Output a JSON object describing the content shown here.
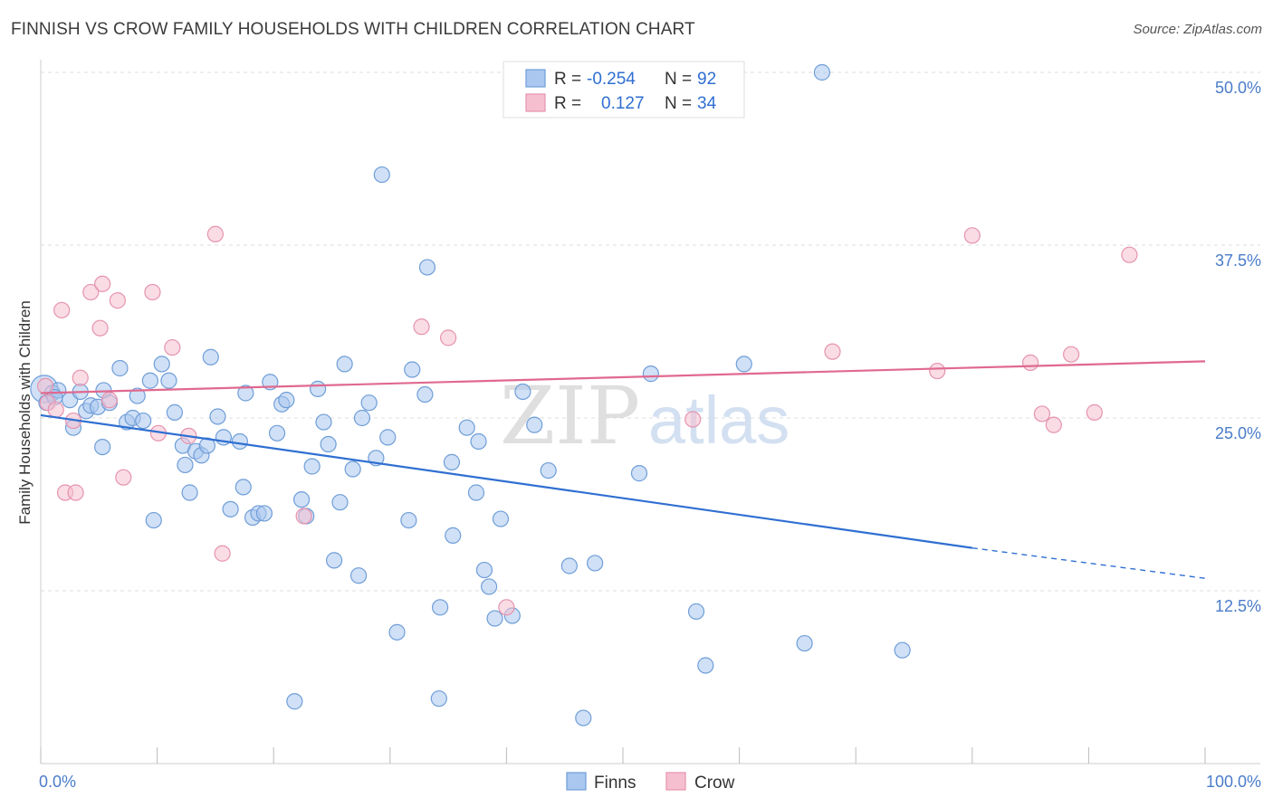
{
  "header": {
    "title": "FINNISH VS CROW FAMILY HOUSEHOLDS WITH CHILDREN CORRELATION CHART",
    "source": "Source: ZipAtlas.com"
  },
  "watermark": {
    "zip": "ZIP",
    "atlas": "atlas"
  },
  "colors": {
    "finns_fill": "#a9c7ef",
    "finns_stroke": "#6f9ed8",
    "finns_line": "#2f6fd1",
    "crow_fill": "#f6bfd0",
    "crow_stroke": "#e593ae",
    "crow_line": "#e0698f",
    "label_blue": "#4a7cc9",
    "grid": "#dddddd"
  },
  "stats": {
    "finns": {
      "r_label": "R =",
      "r_value": "-0.254",
      "n_label": "N =",
      "n_value": "92"
    },
    "crow": {
      "r_label": "R =",
      "r_value": "0.127",
      "n_label": "N =",
      "n_value": "34"
    }
  },
  "chart_data": {
    "type": "scatter",
    "xlabel": "",
    "ylabel": "Family Households with Children",
    "xlim": [
      0,
      100
    ],
    "ylim": [
      0,
      50
    ],
    "x_tick_labels": [
      "0.0%",
      "100.0%"
    ],
    "y_ticks": [
      12.5,
      25.0,
      37.5,
      50.0
    ],
    "y_tick_labels": [
      "12.5%",
      "25.0%",
      "37.5%",
      "50.0%"
    ],
    "legend": [
      "Finns",
      "Crow"
    ],
    "series": [
      {
        "name": "Finns",
        "trend": {
          "x": [
            0,
            80,
            100
          ],
          "y": [
            25.2,
            15.6,
            13.4
          ],
          "solid_until": 80
        },
        "points": [
          [
            0.3,
            27.1,
            3
          ],
          [
            0.5,
            26.1,
            1
          ],
          [
            1.0,
            26.8,
            1
          ],
          [
            1.5,
            27.0,
            1
          ],
          [
            2.5,
            26.3,
            1
          ],
          [
            2.8,
            24.3,
            1
          ],
          [
            3.4,
            26.9,
            1
          ],
          [
            3.9,
            25.5,
            1
          ],
          [
            4.3,
            25.9,
            1
          ],
          [
            4.9,
            25.8,
            1
          ],
          [
            5.3,
            22.9,
            1
          ],
          [
            6.8,
            28.6,
            1
          ],
          [
            5.4,
            27.0,
            1
          ],
          [
            5.9,
            26.1,
            1
          ],
          [
            7.4,
            24.7,
            1
          ],
          [
            7.9,
            25.0,
            1
          ],
          [
            8.3,
            26.6,
            1
          ],
          [
            8.8,
            24.8,
            1
          ],
          [
            9.4,
            27.7,
            1
          ],
          [
            9.7,
            17.6,
            1
          ],
          [
            10.4,
            28.9,
            1
          ],
          [
            11.0,
            27.7,
            1
          ],
          [
            11.5,
            25.4,
            1
          ],
          [
            12.2,
            23.0,
            1
          ],
          [
            12.4,
            21.6,
            1
          ],
          [
            12.8,
            19.6,
            1
          ],
          [
            13.3,
            22.6,
            1
          ],
          [
            13.8,
            22.3,
            1
          ],
          [
            14.3,
            23.0,
            1
          ],
          [
            14.6,
            29.4,
            1
          ],
          [
            15.2,
            25.1,
            1
          ],
          [
            15.7,
            23.6,
            1
          ],
          [
            16.3,
            18.4,
            1
          ],
          [
            17.1,
            23.3,
            1
          ],
          [
            17.4,
            20.0,
            1
          ],
          [
            17.6,
            26.8,
            1
          ],
          [
            18.2,
            17.8,
            1
          ],
          [
            18.7,
            18.1,
            1
          ],
          [
            19.2,
            18.1,
            1
          ],
          [
            19.7,
            27.6,
            1
          ],
          [
            20.3,
            23.9,
            1
          ],
          [
            20.7,
            26.0,
            1
          ],
          [
            21.1,
            26.3,
            1
          ],
          [
            21.8,
            4.5,
            1
          ],
          [
            22.4,
            19.1,
            1
          ],
          [
            22.8,
            17.9,
            1
          ],
          [
            23.3,
            21.5,
            1
          ],
          [
            23.8,
            27.1,
            1
          ],
          [
            24.3,
            24.7,
            1
          ],
          [
            24.7,
            23.1,
            1
          ],
          [
            25.2,
            14.7,
            1
          ],
          [
            25.7,
            18.9,
            1
          ],
          [
            26.1,
            28.9,
            1
          ],
          [
            26.8,
            21.3,
            1
          ],
          [
            27.3,
            13.6,
            1
          ],
          [
            27.6,
            25.0,
            1
          ],
          [
            28.2,
            26.1,
            1
          ],
          [
            28.8,
            22.1,
            1
          ],
          [
            29.3,
            42.6,
            1
          ],
          [
            29.8,
            23.6,
            1
          ],
          [
            30.6,
            9.5,
            1
          ],
          [
            31.6,
            17.6,
            1
          ],
          [
            31.9,
            28.5,
            1
          ],
          [
            33.0,
            26.7,
            1
          ],
          [
            33.2,
            35.9,
            1
          ],
          [
            34.3,
            11.3,
            1
          ],
          [
            34.2,
            4.7,
            1
          ],
          [
            35.3,
            21.8,
            1
          ],
          [
            35.4,
            16.5,
            1
          ],
          [
            36.6,
            24.3,
            1
          ],
          [
            37.4,
            19.6,
            1
          ],
          [
            37.6,
            23.3,
            1
          ],
          [
            38.1,
            14.0,
            1
          ],
          [
            38.5,
            12.8,
            1
          ],
          [
            39.0,
            10.5,
            1
          ],
          [
            39.5,
            17.7,
            1
          ],
          [
            40.5,
            10.7,
            1
          ],
          [
            41.4,
            26.9,
            1
          ],
          [
            42.4,
            24.5,
            1
          ],
          [
            43.6,
            21.2,
            1
          ],
          [
            45.4,
            14.3,
            1
          ],
          [
            46.6,
            3.3,
            1
          ],
          [
            47.6,
            14.5,
            1
          ],
          [
            51.4,
            21.0,
            1
          ],
          [
            52.4,
            28.2,
            1
          ],
          [
            56.3,
            11.0,
            1
          ],
          [
            57.1,
            7.1,
            1
          ],
          [
            60.4,
            28.9,
            1
          ],
          [
            67.1,
            50.0,
            1
          ],
          [
            65.6,
            8.7,
            1
          ],
          [
            74.0,
            8.2,
            1
          ],
          [
            1.2,
            26.5,
            1
          ]
        ]
      },
      {
        "name": "Crow",
        "trend": {
          "x": [
            0,
            100
          ],
          "y": [
            26.8,
            29.1
          ],
          "solid_until": 100
        },
        "points": [
          [
            0.4,
            27.3,
            1
          ],
          [
            0.6,
            26.1,
            1
          ],
          [
            1.3,
            25.6,
            1
          ],
          [
            1.8,
            32.8,
            1
          ],
          [
            2.1,
            19.6,
            1
          ],
          [
            2.8,
            24.8,
            1
          ],
          [
            3.0,
            19.6,
            1
          ],
          [
            3.4,
            27.9,
            1
          ],
          [
            4.3,
            34.1,
            1
          ],
          [
            5.1,
            31.5,
            1
          ],
          [
            5.3,
            34.7,
            1
          ],
          [
            5.9,
            26.3,
            1
          ],
          [
            6.6,
            33.5,
            1
          ],
          [
            7.1,
            20.7,
            1
          ],
          [
            9.6,
            34.1,
            1
          ],
          [
            10.1,
            23.9,
            1
          ],
          [
            11.3,
            30.1,
            1
          ],
          [
            12.7,
            23.7,
            1
          ],
          [
            15.0,
            38.3,
            1
          ],
          [
            15.6,
            15.2,
            1
          ],
          [
            22.6,
            17.9,
            1
          ],
          [
            32.7,
            31.6,
            1
          ],
          [
            35.0,
            30.8,
            1
          ],
          [
            40.0,
            11.3,
            1
          ],
          [
            56.0,
            24.9,
            1
          ],
          [
            68.0,
            29.8,
            1
          ],
          [
            77.0,
            28.4,
            1
          ],
          [
            80.0,
            38.2,
            1
          ],
          [
            85.0,
            29.0,
            1
          ],
          [
            86.0,
            25.3,
            1
          ],
          [
            87.0,
            24.5,
            1
          ],
          [
            88.5,
            29.6,
            1
          ],
          [
            90.5,
            25.4,
            1
          ],
          [
            93.5,
            36.8,
            1
          ]
        ]
      }
    ]
  }
}
